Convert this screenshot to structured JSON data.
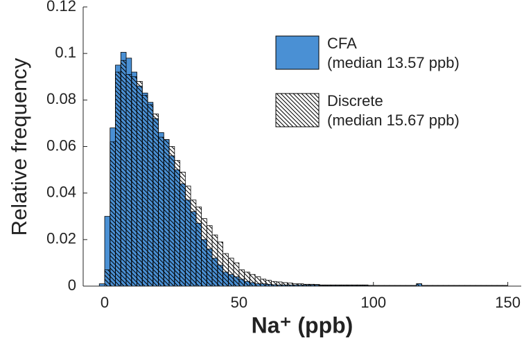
{
  "chart_data": {
    "type": "histogram",
    "xlabel": "Na⁺ (ppb)",
    "ylabel": "Relative frequency",
    "xlim": [
      -8,
      155
    ],
    "ylim": [
      0,
      0.12
    ],
    "xticks": [
      0,
      50,
      100,
      150
    ],
    "yticks": [
      0,
      0.02,
      0.04,
      0.06,
      0.08,
      0.1,
      0.12
    ],
    "bins": [
      -2,
      0,
      2,
      4,
      6,
      8,
      10,
      12,
      14,
      16,
      18,
      20,
      22,
      24,
      26,
      28,
      30,
      32,
      34,
      36,
      38,
      40,
      42,
      44,
      46,
      48,
      50,
      52,
      54,
      56,
      58,
      60,
      62,
      64,
      66,
      68,
      70,
      72,
      74,
      76,
      78,
      80,
      82,
      84,
      86,
      88,
      90,
      92,
      94,
      96,
      98,
      100,
      102,
      104,
      106,
      108,
      110,
      112,
      114,
      116,
      118,
      120,
      122,
      124,
      126,
      128,
      130,
      132,
      134,
      136,
      138,
      140,
      142,
      144,
      146,
      148,
      150
    ],
    "series": [
      {
        "name": "CFA",
        "note": "(median 13.57 ppb)",
        "color": "#4a90d4",
        "hatch": false,
        "values": [
          0.001,
          0.03,
          0.068,
          0.095,
          0.1005,
          0.098,
          0.092,
          0.086,
          0.083,
          0.079,
          0.072,
          0.066,
          0.063,
          0.056,
          0.05,
          0.044,
          0.037,
          0.032,
          0.027,
          0.02,
          0.016,
          0.012,
          0.009,
          0.006,
          0.005,
          0.004,
          0.003,
          0.002,
          0.0015,
          0.001,
          0.001,
          0.0008,
          0.0006,
          0.0005,
          0.0005,
          0.0005,
          0.0005,
          0.0005,
          0.0005,
          0.0005,
          0.0005,
          0.0003,
          0.0003,
          0.0003,
          0.0003,
          0.0003,
          0.0003,
          0.0003,
          0.0003,
          0.0003,
          0.0003,
          0.0002,
          0.0002,
          0.0002,
          0.0002,
          0.0002,
          0.0002,
          0.0002,
          0.0002,
          0.001,
          0.0002,
          0.0002,
          0.0002,
          0.0002,
          0.0002,
          0.0002,
          0.0002,
          0.0002,
          0.0002,
          0.0002,
          0.0002,
          0.0002,
          0.0002,
          0.0002,
          0.0002,
          0.0002
        ]
      },
      {
        "name": "Discrete",
        "note": "(median 15.67 ppb)",
        "color": "#000000",
        "hatch": true,
        "values": [
          0,
          0.007,
          0.062,
          0.092,
          0.097,
          0.091,
          0.09,
          0.088,
          0.082,
          0.078,
          0.074,
          0.064,
          0.063,
          0.06,
          0.054,
          0.049,
          0.043,
          0.037,
          0.034,
          0.029,
          0.026,
          0.022,
          0.019,
          0.014,
          0.012,
          0.01,
          0.007,
          0.006,
          0.005,
          0.004,
          0.003,
          0.0025,
          0.002,
          0.0018,
          0.0015,
          0.0013,
          0.001,
          0.001,
          0.0008,
          0.0008,
          0.0007,
          0.0005,
          0.0005,
          0.0005,
          0.0005,
          0.0005,
          0.0005,
          0.0005,
          0.0005,
          0.0005,
          0.0003,
          0.0003,
          0.0003,
          0.0003,
          0.0003,
          0.0003,
          0.0003,
          0.0003,
          0.0003,
          0.001,
          0.0003,
          0.0003,
          0.0003,
          0.0003,
          0.0003,
          0.0003,
          0.0003,
          0.0003,
          0.0003,
          0.0003,
          0.0003,
          0.0003,
          0.0003,
          0.0003,
          0.0003,
          0.0003
        ]
      }
    ]
  }
}
